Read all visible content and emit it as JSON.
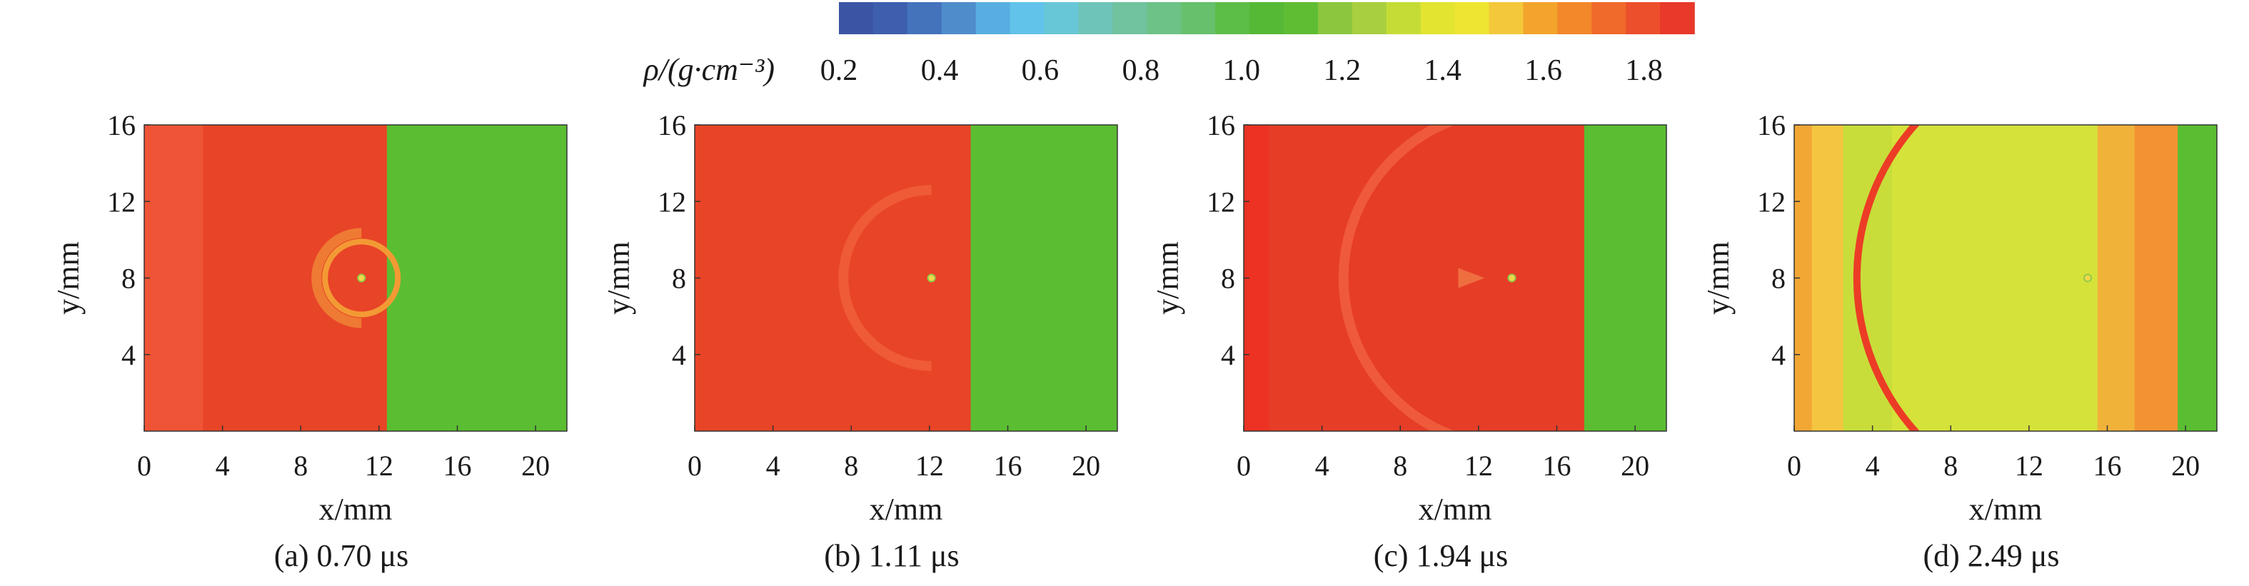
{
  "colorbar": {
    "label": "ρ/(g·cm⁻³)",
    "ticks": [
      "0.2",
      "0.4",
      "0.6",
      "0.8",
      "1.0",
      "1.2",
      "1.4",
      "1.6",
      "1.8"
    ],
    "range": [
      0.2,
      1.9
    ],
    "colors": [
      "#3b55a4",
      "#3e5fae",
      "#4473bc",
      "#4e8ccb",
      "#58aee0",
      "#62c3ea",
      "#68c7d6",
      "#6ec4b8",
      "#71c29f",
      "#6dc287",
      "#66c06c",
      "#5cbd47",
      "#55b936",
      "#5fbd34",
      "#8bc63e",
      "#a7cf3f",
      "#c5dc37",
      "#e2e430",
      "#eee533",
      "#f3c83a",
      "#f2a42d",
      "#f28829",
      "#ef6a2b",
      "#ec4f2c",
      "#e8392a"
    ]
  },
  "chart_data": [
    {
      "type": "heatmap",
      "caption": "(a) 0.70 μs",
      "xlabel": "x/mm",
      "ylabel": "y/mm",
      "xlim": [
        0,
        21.6
      ],
      "ylim": [
        0,
        16
      ],
      "xticks": [
        "0",
        "4",
        "8",
        "12",
        "16",
        "20"
      ],
      "yticks": [
        "4",
        "8",
        "12",
        "16"
      ],
      "density_bands": [
        {
          "x": [
            0,
            3.0
          ],
          "rho": 1.75,
          "color": "#ef5436"
        },
        {
          "x": [
            3.0,
            12.4
          ],
          "rho": 1.85,
          "color": "#e84427"
        },
        {
          "x": [
            12.4,
            21.6
          ],
          "rho": 1.1,
          "color": "#5bbd32"
        }
      ],
      "wave_front": {
        "center": [
          11.1,
          8
        ],
        "radius": 2.3,
        "color": "#ef7a33"
      },
      "void": {
        "center": [
          11.1,
          8
        ]
      }
    },
    {
      "type": "heatmap",
      "caption": "(b) 1.11 μs",
      "xlabel": "x/mm",
      "ylabel": "y/mm",
      "xlim": [
        0,
        21.6
      ],
      "ylim": [
        0,
        16
      ],
      "xticks": [
        "0",
        "4",
        "8",
        "12",
        "16",
        "20"
      ],
      "yticks": [
        "4",
        "8",
        "12",
        "16"
      ],
      "density_bands": [
        {
          "x": [
            0,
            14.1
          ],
          "rho": 1.85,
          "color": "#e84427"
        },
        {
          "x": [
            14.1,
            21.6
          ],
          "rho": 1.1,
          "color": "#5bbd32"
        }
      ],
      "wave_front": {
        "center": [
          12.1,
          8
        ],
        "radius": 4.5,
        "color": "#ef5a37"
      },
      "void": {
        "center": [
          12.1,
          8
        ]
      }
    },
    {
      "type": "heatmap",
      "caption": "(c) 1.94 μs",
      "xlabel": "x/mm",
      "ylabel": "y/mm",
      "xlim": [
        0,
        21.6
      ],
      "ylim": [
        0,
        16
      ],
      "xticks": [
        "0",
        "4",
        "8",
        "12",
        "16",
        "20"
      ],
      "yticks": [
        "4",
        "8",
        "12",
        "16"
      ],
      "density_bands": [
        {
          "x": [
            0,
            1.3
          ],
          "rho": 1.88,
          "color": "#ec3223"
        },
        {
          "x": [
            1.3,
            17.4
          ],
          "rho": 1.85,
          "color": "#e63d26"
        },
        {
          "x": [
            17.4,
            21.6
          ],
          "rho": 1.1,
          "color": "#5bbd32"
        }
      ],
      "wave_front": {
        "center": [
          13.7,
          8
        ],
        "radius": 8.6,
        "color": "#ef5a3a"
      },
      "void": {
        "center": [
          13.7,
          8
        ]
      }
    },
    {
      "type": "heatmap",
      "caption": "(d) 2.49 μs",
      "xlabel": "x/mm",
      "ylabel": "y/mm",
      "xlim": [
        0,
        21.6
      ],
      "ylim": [
        0,
        16
      ],
      "xticks": [
        "0",
        "4",
        "8",
        "12",
        "16",
        "20"
      ],
      "yticks": [
        "4",
        "8",
        "12",
        "16"
      ],
      "density_bands": [
        {
          "x": [
            0,
            0.9
          ],
          "rho": 1.55,
          "color": "#f2a735"
        },
        {
          "x": [
            0.9,
            2.5
          ],
          "rho": 1.5,
          "color": "#f4c540"
        },
        {
          "x": [
            2.5,
            5.0
          ],
          "rho": 1.35,
          "color": "#c8dd3a"
        },
        {
          "x": [
            5.0,
            15.5
          ],
          "rho": 1.4,
          "color": "#d5e23a"
        },
        {
          "x": [
            15.5,
            17.4
          ],
          "rho": 1.5,
          "color": "#f1b23a"
        },
        {
          "x": [
            17.4,
            19.6
          ],
          "rho": 1.6,
          "color": "#f29232"
        },
        {
          "x": [
            19.6,
            21.6
          ],
          "rho": 1.1,
          "color": "#5bbd32"
        }
      ],
      "wave_front": {
        "center": [
          15.0,
          8
        ],
        "radius": 11.8,
        "color": "#ec3c26"
      },
      "void": {
        "center": [
          15.0,
          8
        ]
      }
    }
  ]
}
